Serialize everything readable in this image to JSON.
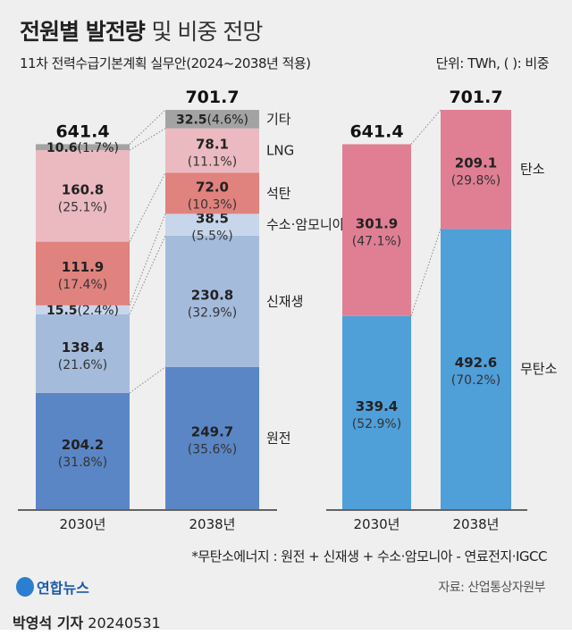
{
  "header": {
    "title_bold": "전원별 발전량",
    "title_rest": "및 비중 전망",
    "subtitle": "11차 전력수급기본계획 실무안(2024~2038년 적용)",
    "unit": "단위: TWh, ( ): 비중"
  },
  "chart_data": [
    {
      "type": "bar",
      "stacked": true,
      "categories": [
        "2030년",
        "2038년"
      ],
      "totals": [
        "641.4",
        "701.7"
      ],
      "series": [
        {
          "name": "원전",
          "values": [
            204.2,
            249.7
          ],
          "shares": [
            "(31.8%)",
            "(35.6%)"
          ],
          "color": "#5b86c6"
        },
        {
          "name": "신재생",
          "values": [
            138.4,
            230.8
          ],
          "shares": [
            "(21.6%)",
            "(32.9%)"
          ],
          "color": "#a5bbdc"
        },
        {
          "name": "수소·암모니아",
          "values": [
            15.5,
            38.5
          ],
          "shares": [
            "(2.4%)",
            "(5.5%)"
          ],
          "color": "#c8d6eb"
        },
        {
          "name": "석탄",
          "values": [
            111.9,
            72.0
          ],
          "shares": [
            "(17.4%)",
            "(10.3%)"
          ],
          "color": "#e0827e"
        },
        {
          "name": "LNG",
          "values": [
            160.8,
            78.1
          ],
          "shares": [
            "(25.1%)",
            "(11.1%)"
          ],
          "color": "#ebbac1"
        },
        {
          "name": "기타",
          "values": [
            10.6,
            32.5
          ],
          "shares": [
            "(1.7%)",
            "(4.6%)"
          ],
          "color": "#a3a3a3"
        }
      ]
    },
    {
      "type": "bar",
      "stacked": true,
      "categories": [
        "2030년",
        "2038년"
      ],
      "totals": [
        "641.4",
        "701.7"
      ],
      "series": [
        {
          "name": "무탄소",
          "values": [
            339.4,
            492.6
          ],
          "shares": [
            "(52.9%)",
            "(70.2%)"
          ],
          "color": "#4f9fd9"
        },
        {
          "name": "탄소",
          "values": [
            301.9,
            209.1
          ],
          "shares": [
            "(47.1%)",
            "(29.8%)"
          ],
          "color": "#e07f94"
        }
      ]
    }
  ],
  "footer": {
    "note": "*무탄소에너지 : 원전 + 신재생 + 수소·암모니아 - 연료전지·IGCC",
    "source": "자료: 산업통상자원부",
    "logo": "연합뉴스",
    "reporter": "박영석 기자",
    "date": "20240531"
  }
}
